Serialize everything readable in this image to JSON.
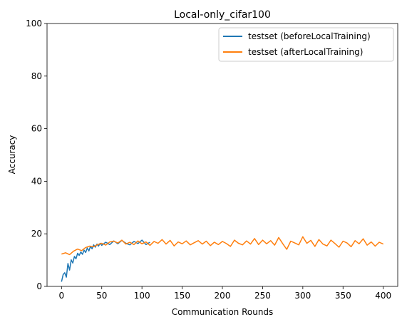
{
  "chart_data": {
    "type": "line",
    "title": "Local-only_cifar100",
    "xlabel": "Communication Rounds",
    "ylabel": "Accuracy",
    "xlim": [
      -18,
      418
    ],
    "ylim": [
      0,
      100
    ],
    "xticks": [
      0,
      50,
      100,
      150,
      200,
      250,
      300,
      350,
      400
    ],
    "yticks": [
      0,
      20,
      40,
      60,
      80,
      100
    ],
    "grid": false,
    "legend_position": "top-right",
    "colors": {
      "before": "#1f77b4",
      "after": "#ff7f0e"
    },
    "series": [
      {
        "name": "testset (beforeLocalTraining)",
        "color": "#1f77b4",
        "points": [
          [
            0,
            1.8
          ],
          [
            2,
            4.5
          ],
          [
            4,
            5.2
          ],
          [
            6,
            3.5
          ],
          [
            8,
            8.7
          ],
          [
            10,
            6.2
          ],
          [
            12,
            10.1
          ],
          [
            14,
            8.9
          ],
          [
            16,
            11.4
          ],
          [
            18,
            10.5
          ],
          [
            20,
            12.6
          ],
          [
            22,
            11.8
          ],
          [
            24,
            13.1
          ],
          [
            26,
            12.2
          ],
          [
            28,
            13.8
          ],
          [
            30,
            12.9
          ],
          [
            32,
            14.6
          ],
          [
            34,
            13.5
          ],
          [
            36,
            15.2
          ],
          [
            38,
            14.3
          ],
          [
            40,
            15.8
          ],
          [
            42,
            14.9
          ],
          [
            44,
            16.1
          ],
          [
            46,
            15.3
          ],
          [
            48,
            16.4
          ],
          [
            50,
            15.6
          ],
          [
            55,
            16.8
          ],
          [
            60,
            15.9
          ],
          [
            65,
            17.3
          ],
          [
            70,
            16.2
          ],
          [
            75,
            17.5
          ],
          [
            80,
            16.4
          ],
          [
            85,
            15.8
          ],
          [
            90,
            17.1
          ],
          [
            95,
            16.3
          ],
          [
            100,
            17.6
          ],
          [
            105,
            15.9
          ],
          [
            110,
            16.8
          ]
        ]
      },
      {
        "name": "testset (afterLocalTraining)",
        "color": "#ff7f0e",
        "points": [
          [
            0,
            12.3
          ],
          [
            5,
            12.8
          ],
          [
            10,
            12.1
          ],
          [
            15,
            13.4
          ],
          [
            20,
            14.2
          ],
          [
            25,
            13.6
          ],
          [
            30,
            14.8
          ],
          [
            35,
            15.3
          ],
          [
            40,
            15.1
          ],
          [
            45,
            15.9
          ],
          [
            50,
            16.4
          ],
          [
            55,
            15.7
          ],
          [
            60,
            16.9
          ],
          [
            65,
            17.2
          ],
          [
            70,
            16.5
          ],
          [
            75,
            17.6
          ],
          [
            80,
            16.1
          ],
          [
            85,
            16.8
          ],
          [
            90,
            15.9
          ],
          [
            95,
            17.3
          ],
          [
            100,
            16.2
          ],
          [
            105,
            16.9
          ],
          [
            110,
            15.6
          ],
          [
            115,
            17.1
          ],
          [
            120,
            16.4
          ],
          [
            125,
            17.8
          ],
          [
            130,
            16.1
          ],
          [
            135,
            17.5
          ],
          [
            140,
            15.4
          ],
          [
            145,
            16.9
          ],
          [
            150,
            16.2
          ],
          [
            155,
            17.3
          ],
          [
            160,
            15.8
          ],
          [
            165,
            16.6
          ],
          [
            170,
            17.4
          ],
          [
            175,
            16.1
          ],
          [
            180,
            17.2
          ],
          [
            185,
            15.5
          ],
          [
            190,
            16.8
          ],
          [
            195,
            15.9
          ],
          [
            200,
            17.1
          ],
          [
            205,
            16.3
          ],
          [
            210,
            15.2
          ],
          [
            215,
            17.6
          ],
          [
            220,
            16.4
          ],
          [
            225,
            15.8
          ],
          [
            230,
            17.3
          ],
          [
            235,
            16.1
          ],
          [
            240,
            18.2
          ],
          [
            245,
            15.9
          ],
          [
            250,
            17.6
          ],
          [
            255,
            16.2
          ],
          [
            260,
            17.4
          ],
          [
            265,
            15.7
          ],
          [
            270,
            18.6
          ],
          [
            275,
            16.3
          ],
          [
            280,
            14.1
          ],
          [
            285,
            17.2
          ],
          [
            290,
            16.5
          ],
          [
            295,
            15.8
          ],
          [
            300,
            18.9
          ],
          [
            305,
            16.4
          ],
          [
            310,
            17.5
          ],
          [
            315,
            15.2
          ],
          [
            320,
            17.8
          ],
          [
            325,
            16.1
          ],
          [
            330,
            15.4
          ],
          [
            335,
            17.6
          ],
          [
            340,
            16.3
          ],
          [
            345,
            14.9
          ],
          [
            350,
            17.2
          ],
          [
            355,
            16.5
          ],
          [
            360,
            15.1
          ],
          [
            365,
            17.4
          ],
          [
            370,
            16.2
          ],
          [
            375,
            18.1
          ],
          [
            380,
            15.7
          ],
          [
            385,
            16.9
          ],
          [
            390,
            15.3
          ],
          [
            395,
            16.8
          ],
          [
            400,
            16.1
          ]
        ]
      }
    ]
  }
}
